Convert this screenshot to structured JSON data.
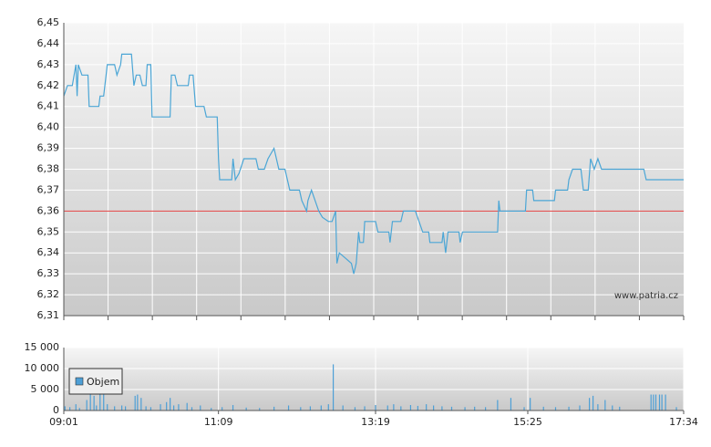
{
  "chart_data": [
    {
      "type": "line",
      "xlim": [
        "09:01",
        "17:34"
      ],
      "ylim": [
        6.31,
        6.45
      ],
      "yticks": [
        {
          "value": 6.31,
          "label": "6,31"
        },
        {
          "value": 6.32,
          "label": "6,32"
        },
        {
          "value": 6.33,
          "label": "6,33"
        },
        {
          "value": 6.34,
          "label": "6,34"
        },
        {
          "value": 6.35,
          "label": "6,35"
        },
        {
          "value": 6.36,
          "label": "6,36"
        },
        {
          "value": 6.37,
          "label": "6,37"
        },
        {
          "value": 6.38,
          "label": "6,38"
        },
        {
          "value": 6.39,
          "label": "6,39"
        },
        {
          "value": 6.4,
          "label": "6,40"
        },
        {
          "value": 6.41,
          "label": "6,41"
        },
        {
          "value": 6.42,
          "label": "6,42"
        },
        {
          "value": 6.43,
          "label": "6,43"
        },
        {
          "value": 6.44,
          "label": "6,44"
        },
        {
          "value": 6.45,
          "label": "6,45"
        }
      ],
      "grid": true,
      "reference_line": {
        "value": 6.36,
        "color": "#e04040"
      },
      "watermark": "www.patria.cz",
      "series": [
        {
          "color": "#4ba6d6",
          "x": [
            "09:01",
            "09:04",
            "09:08",
            "09:11",
            "09:12",
            "09:13",
            "09:16",
            "09:21",
            "09:22",
            "09:30",
            "09:31",
            "09:34",
            "09:36",
            "09:37",
            "09:43",
            "09:45",
            "09:48",
            "09:49",
            "09:57",
            "09:59",
            "10:01",
            "10:04",
            "10:06",
            "10:09",
            "10:10",
            "10:13",
            "10:14",
            "10:29",
            "10:30",
            "10:33",
            "10:35",
            "10:44",
            "10:45",
            "10:48",
            "10:50",
            "10:57",
            "10:59",
            "11:08",
            "11:09",
            "11:10",
            "11:20",
            "11:21",
            "11:23",
            "11:26",
            "11:30",
            "11:40",
            "11:42",
            "11:47",
            "11:50",
            "11:55",
            "11:59",
            "12:04",
            "12:08",
            "12:16",
            "12:18",
            "12:22",
            "12:23",
            "12:26",
            "12:29",
            "12:32",
            "12:35",
            "12:40",
            "12:43",
            "12:46",
            "12:47",
            "12:49",
            "12:55",
            "12:59",
            "13:01",
            "13:03",
            "13:05",
            "13:06",
            "13:09",
            "13:10",
            "13:19",
            "13:21",
            "13:30",
            "13:31",
            "13:33",
            "13:40",
            "13:42",
            "13:52",
            "13:55",
            "13:58",
            "14:03",
            "14:04",
            "14:14",
            "14:15",
            "14:17",
            "14:19",
            "14:28",
            "14:29",
            "14:31",
            "15:00",
            "15:01",
            "15:02",
            "15:23",
            "15:24",
            "15:29",
            "15:30",
            "15:47",
            "15:48",
            "15:58",
            "15:59",
            "16:02",
            "16:09",
            "16:11",
            "16:15",
            "16:17",
            "16:20",
            "16:23",
            "16:26",
            "17:01",
            "17:03",
            "17:34"
          ],
          "values": [
            6.415,
            6.42,
            6.42,
            6.43,
            6.415,
            6.43,
            6.425,
            6.425,
            6.41,
            6.41,
            6.415,
            6.415,
            6.425,
            6.43,
            6.43,
            6.425,
            6.43,
            6.435,
            6.435,
            6.42,
            6.425,
            6.425,
            6.42,
            6.42,
            6.43,
            6.43,
            6.405,
            6.405,
            6.425,
            6.425,
            6.42,
            6.42,
            6.425,
            6.425,
            6.41,
            6.41,
            6.405,
            6.405,
            6.385,
            6.375,
            6.375,
            6.385,
            6.375,
            6.378,
            6.385,
            6.385,
            6.38,
            6.38,
            6.385,
            6.39,
            6.38,
            6.38,
            6.37,
            6.37,
            6.365,
            6.36,
            6.365,
            6.37,
            6.365,
            6.36,
            6.357,
            6.355,
            6.355,
            6.36,
            6.335,
            6.34,
            6.337,
            6.335,
            6.33,
            6.335,
            6.35,
            6.345,
            6.345,
            6.355,
            6.355,
            6.35,
            6.35,
            6.345,
            6.355,
            6.355,
            6.36,
            6.36,
            6.355,
            6.35,
            6.35,
            6.345,
            6.345,
            6.35,
            6.34,
            6.35,
            6.35,
            6.345,
            6.35,
            6.35,
            6.365,
            6.36,
            6.36,
            6.37,
            6.37,
            6.365,
            6.365,
            6.37,
            6.37,
            6.375,
            6.38,
            6.38,
            6.37,
            6.37,
            6.385,
            6.38,
            6.385,
            6.38,
            6.38,
            6.375,
            6.375
          ]
        }
      ]
    },
    {
      "type": "bar",
      "xlim": [
        "09:01",
        "17:34"
      ],
      "xticks": [
        "09:01",
        "11:09",
        "13:19",
        "15:25",
        "17:34"
      ],
      "ylim": [
        0,
        15000
      ],
      "yticks": [
        0,
        {
          "value": 5000,
          "label": "5 000"
        },
        {
          "value": 10000,
          "label": "10 000"
        },
        {
          "value": 15000,
          "label": "15 000"
        }
      ],
      "grid": true,
      "series": [
        {
          "name": "Objem",
          "color": "#4d9fd6",
          "x": [
            "09:02",
            "09:06",
            "09:11",
            "09:14",
            "09:20",
            "09:23",
            "09:26",
            "09:28",
            "09:31",
            "09:34",
            "09:37",
            "09:43",
            "09:49",
            "09:52",
            "10:00",
            "10:02",
            "10:05",
            "10:09",
            "10:13",
            "10:21",
            "10:26",
            "10:29",
            "10:32",
            "10:36",
            "10:43",
            "10:47",
            "10:54",
            "11:03",
            "11:12",
            "11:21",
            "11:32",
            "11:43",
            "11:55",
            "12:07",
            "12:17",
            "12:25",
            "12:34",
            "12:40",
            "12:44",
            "12:52",
            "13:02",
            "13:10",
            "13:19",
            "13:29",
            "13:34",
            "13:40",
            "13:48",
            "13:54",
            "14:01",
            "14:07",
            "14:14",
            "14:22",
            "14:33",
            "14:41",
            "14:50",
            "15:00",
            "15:11",
            "15:22",
            "15:27",
            "15:38",
            "15:48",
            "15:59",
            "16:08",
            "16:16",
            "16:19",
            "16:23",
            "16:29",
            "16:35",
            "16:41",
            "17:07",
            "17:09",
            "17:11",
            "17:14",
            "17:16",
            "17:19",
            "17:28"
          ],
          "values": [
            1000,
            800,
            1500,
            600,
            2500,
            4000,
            3500,
            1200,
            4000,
            3800,
            1500,
            1000,
            1200,
            1000,
            3500,
            3800,
            3000,
            1000,
            800,
            1500,
            2000,
            3000,
            1200,
            1500,
            1800,
            800,
            1200,
            600,
            800,
            1300,
            700,
            600,
            900,
            1200,
            800,
            1000,
            1200,
            1500,
            11000,
            1200,
            800,
            1000,
            1300,
            1200,
            1500,
            1000,
            1300,
            1100,
            1500,
            1200,
            1000,
            900,
            800,
            900,
            800,
            2500,
            3000,
            800,
            3000,
            900,
            800,
            900,
            1200,
            3000,
            3500,
            1500,
            2500,
            1200,
            900,
            3800,
            3800,
            3800,
            3800,
            3800,
            3800,
            800
          ]
        }
      ]
    }
  ]
}
